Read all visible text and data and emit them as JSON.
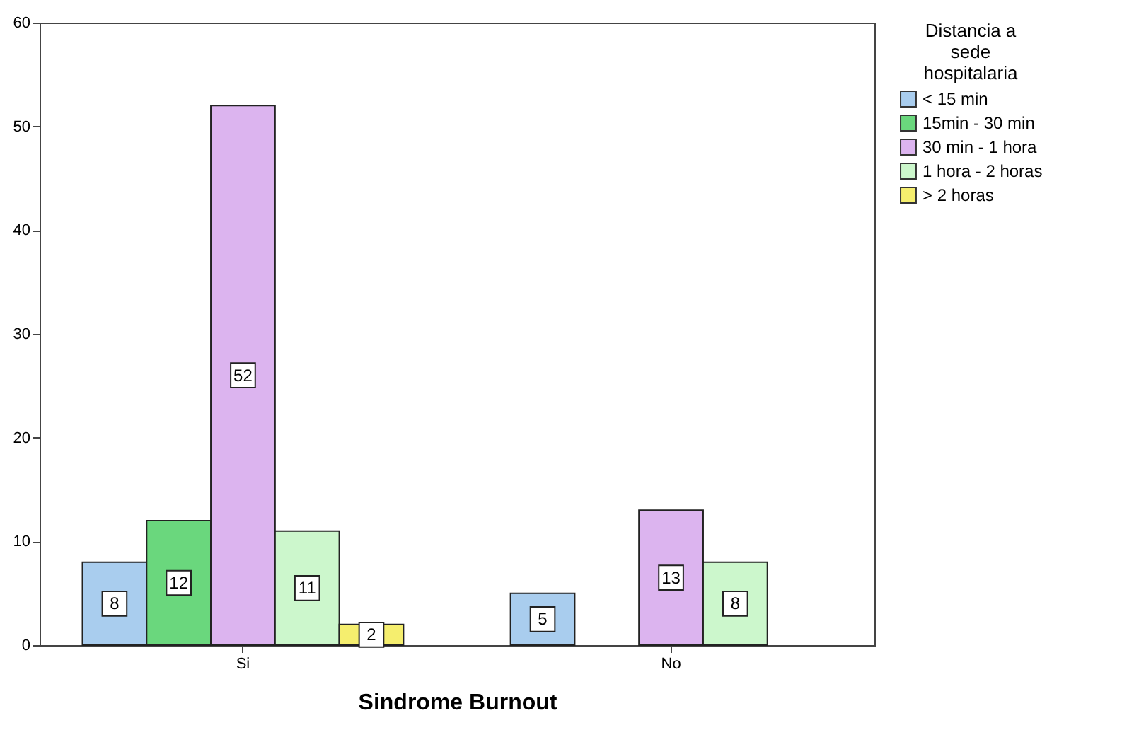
{
  "chart_data": {
    "type": "bar",
    "xlabel": "Sindrome Burnout",
    "legend_title": "Distancia a sede hospitalaria",
    "categories": [
      "Si",
      "No"
    ],
    "series": [
      {
        "name": "< 15 min",
        "color": "#a9cdee",
        "values": [
          8,
          5
        ]
      },
      {
        "name": "15min - 30 min",
        "color": "#6ad77d",
        "values": [
          12,
          null
        ]
      },
      {
        "name": "30 min - 1 hora",
        "color": "#dcb4ef",
        "values": [
          52,
          13
        ]
      },
      {
        "name": "1 hora - 2 horas",
        "color": "#ccf7cc",
        "values": [
          11,
          8
        ]
      },
      {
        "name": "> 2 horas",
        "color": "#f5ee6e",
        "values": [
          2,
          null
        ]
      }
    ],
    "ylim": [
      0,
      60
    ],
    "yticks": [
      0,
      10,
      20,
      30,
      40,
      50,
      60
    ],
    "data_labels": true,
    "legend": "top right"
  }
}
